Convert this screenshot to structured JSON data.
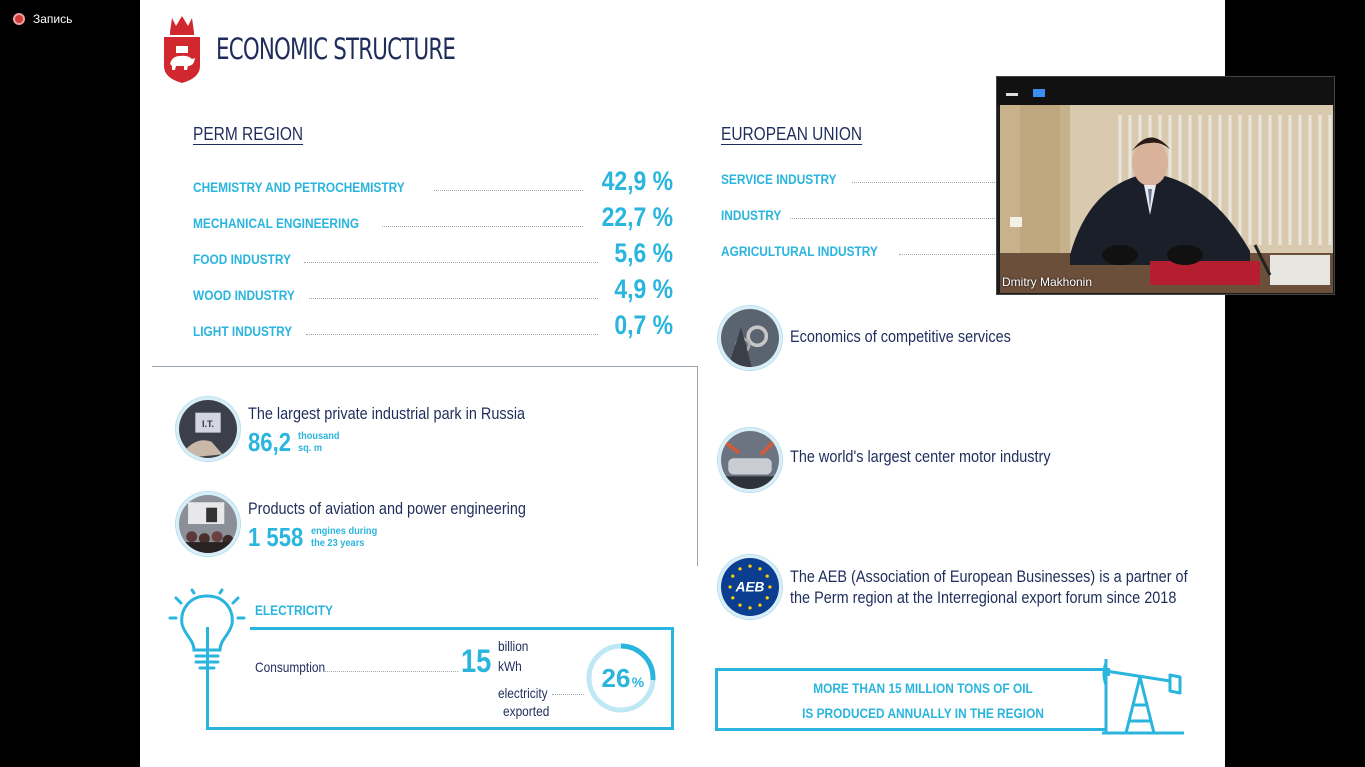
{
  "recording": {
    "label": "Запись"
  },
  "slide": {
    "title": "ECONOMIC STRUCTURE",
    "perm": {
      "heading": "PERM REGION",
      "rows": [
        {
          "label": "CHEMISTRY AND PETROCHEMISTRY",
          "value": "42,9 %"
        },
        {
          "label": "MECHANICAL ENGINEERING",
          "value": "22,7 %"
        },
        {
          "label": "FOOD INDUSTRY",
          "value": "5,6 %"
        },
        {
          "label": "WOOD INDUSTRY",
          "value": "4,9 %"
        },
        {
          "label": "LIGHT INDUSTRY",
          "value": "0,7 %"
        }
      ],
      "park": {
        "text": "The largest private industrial park in Russia",
        "number": "86,2",
        "unit_line1": "thousand",
        "unit_line2": "sq. m",
        "icon_text": "I.T."
      },
      "aviation": {
        "text": "Products of aviation and power engineering",
        "number": "1 558",
        "unit_line1": "engines during",
        "unit_line2": "the 23 years"
      },
      "electricity": {
        "title": "ELECTRICITY",
        "consumption_label": "Consumption",
        "consumption_value": "15",
        "consumption_unit1": "billion",
        "consumption_unit2": "kWh",
        "exported_label1": "electricity",
        "exported_label2": "exported",
        "exported_value": "26",
        "exported_suffix": "%",
        "exported_fraction": 0.26
      }
    },
    "eu": {
      "heading": "EUROPEAN UNION",
      "rows": [
        {
          "label": "SERVICE INDUSTRY"
        },
        {
          "label": "INDUSTRY"
        },
        {
          "label": "AGRICULTURAL INDUSTRY"
        }
      ],
      "services": "Economics of competitive services",
      "motor": "The world's largest center motor industry",
      "aeb_line1": "The AEB (Association of European Businesses) is a partner of",
      "aeb_line2": "the Perm region at the Interregional export forum since 2018",
      "aeb_logo_text": "AEB",
      "oil_line1": "MORE THAN 15 MILLION TONS OF OIL",
      "oil_line2": "IS PRODUCED ANNUALLY IN THE REGION"
    }
  },
  "video": {
    "participant_name": "Dmitry Makhonin"
  },
  "colors": {
    "accent": "#2ab5de",
    "navy": "#1f2d5c",
    "crest_red": "#d0282e"
  }
}
